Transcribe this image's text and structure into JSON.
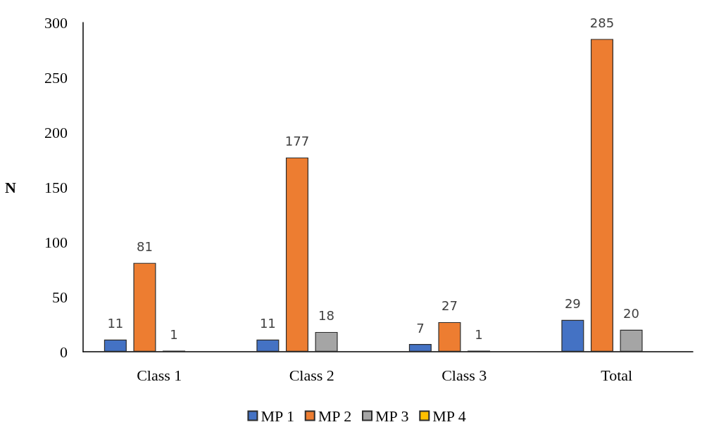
{
  "chart_data": {
    "type": "bar",
    "ylabel": "N",
    "categories": [
      "Class 1",
      "Class 2",
      "Class 3",
      "Total"
    ],
    "series": [
      {
        "name": "MP 1",
        "color": "#4472c4",
        "values": [
          11,
          11,
          7,
          29
        ]
      },
      {
        "name": "MP 2",
        "color": "#ed7d31",
        "values": [
          81,
          177,
          27,
          285
        ]
      },
      {
        "name": "MP 3",
        "color": "#a5a5a5",
        "values": [
          1,
          18,
          1,
          20
        ]
      },
      {
        "name": "MP 4",
        "color": "#ffc000",
        "values": [
          null,
          null,
          null,
          null
        ]
      }
    ],
    "ylim": [
      0,
      300
    ],
    "yticks": [
      0,
      50,
      100,
      150,
      200,
      250,
      300
    ],
    "grid": false,
    "legend": "bottom",
    "data_labels": true
  }
}
